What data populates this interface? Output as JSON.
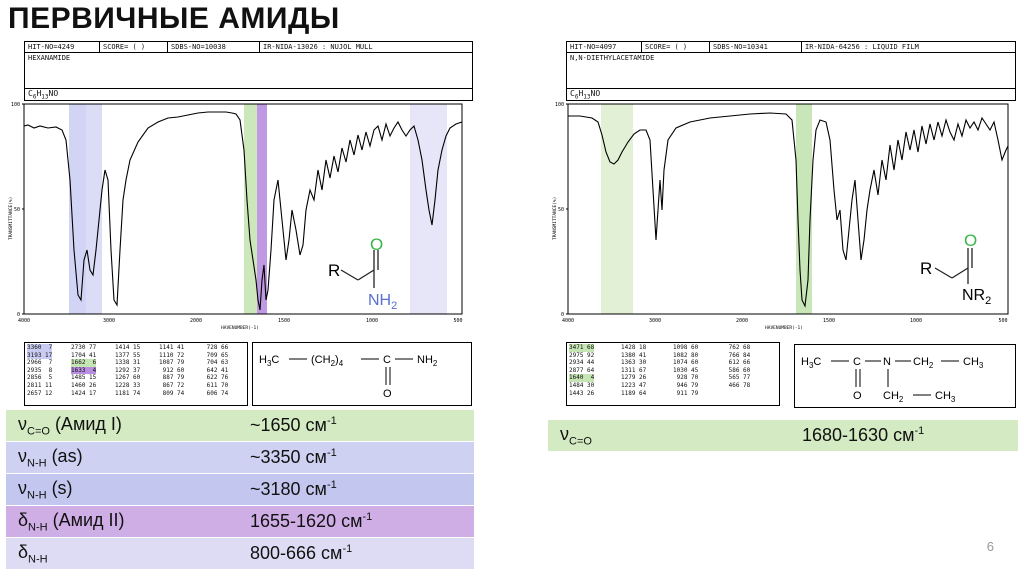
{
  "title": "ПЕРВИЧНЫЕ АМИДЫ",
  "page_number": "6",
  "left": {
    "header": {
      "hit": "HIT-NO=4249",
      "score": "SCORE=  (  )",
      "sdbs": "SDBS-NO=10038",
      "ir": "IR-NIDA-13026 : NUJOL MULL",
      "name": "HEXANAMIDE",
      "formula": "C6H13NO"
    },
    "axis": {
      "y_top": "100",
      "y_mid": "50",
      "y_bottom": "0",
      "y_label": "TRANSMITTANCE(%)",
      "x_ticks": [
        "4000",
        "3000",
        "2000",
        "1500",
        "1000",
        "500"
      ],
      "x_label": "HAVENUMBER(-1)"
    },
    "structure": {
      "r": "R",
      "o": "O",
      "n": "NH",
      "n_sub": "2"
    },
    "peaks": [
      [
        "3360  7",
        "3193 17",
        "2966  7",
        "2935  8",
        "2856  5",
        "2811 11",
        "2657 12"
      ],
      [
        "2730 77",
        "1704 41",
        "1662  6",
        "1633  4",
        "1485 15",
        "1460 26",
        "1424 17"
      ],
      [
        "1414 15",
        "1377 55",
        "1338 31",
        "1292 37",
        "1267 60",
        "1228 33",
        "1181 74"
      ],
      [
        "1141 41",
        "1110 72",
        "1087 79",
        " 912 60",
        " 887 79",
        " 867 72",
        " 809 74"
      ],
      [
        " 728 66",
        " 709 65",
        " 704 63",
        " 642 41",
        " 622 76",
        " 611 70",
        " 606 74"
      ]
    ],
    "formula": {
      "a": "H",
      "a_sub": "3",
      "b": "C",
      "c": "(CH",
      "c_sub": "2",
      "d": ")",
      "d_sub": "4",
      "e": "C",
      "f": "NH",
      "f_sub": "2",
      "o": "O"
    },
    "table": [
      {
        "nu": "ν",
        "sub": "C=O",
        "label": " (Амид I)",
        "value": "~1650 см",
        "sup": "-1"
      },
      {
        "nu": "ν",
        "sub": "N-H",
        "label": " (as)",
        "value": "~3350 см",
        "sup": "-1"
      },
      {
        "nu": "ν",
        "sub": "N-H",
        "label": " (s)",
        "value": "~3180 см",
        "sup": "-1"
      },
      {
        "nu": "δ",
        "sub": "N-H",
        "label": " (Амид II)",
        "value": "1655-1620 см",
        "sup": "-1"
      },
      {
        "nu": "δ",
        "sub": "N-H",
        "label": "",
        "value": "800-666 см",
        "sup": "-1"
      }
    ]
  },
  "right": {
    "header": {
      "hit": "HIT-NO=4097",
      "score": "SCORE=  (  )",
      "sdbs": "SDBS-NO=10341",
      "ir": "IR-NIDA-64256 : LIQUID FILM",
      "name": "N,N-DIETHYLACETAMIDE",
      "formula": "C6H13NO"
    },
    "axis": {
      "y_top": "100",
      "y_mid": "50",
      "y_bottom": "0",
      "y_label": "TRANSMITTANCE(%)",
      "x_ticks": [
        "4000",
        "3000",
        "2000",
        "1500",
        "1000",
        "500"
      ],
      "x_label": "HAVENUMBER(-1)"
    },
    "structure": {
      "r": "R",
      "o": "O",
      "n": "NR",
      "n_sub": "2"
    },
    "peaks": [
      [
        "3471 68",
        "2975 92",
        "2934 44",
        "2877 64",
        "1640  4",
        "1484 30",
        "1443 26"
      ],
      [
        "1428 18",
        "1380 41",
        "1363 30",
        "1311 67",
        "1279 26",
        "1223 47",
        "1189 64"
      ],
      [
        "1098 60",
        "1082 80",
        "1074 60",
        "1030 45",
        " 928 70",
        " 946 79",
        " 911 79"
      ],
      [
        " 762 68",
        " 766 84",
        " 612 66",
        " 586 60",
        " 565 77",
        " 466 78",
        ""
      ]
    ],
    "formula": {
      "a": "H",
      "a_sub": "3",
      "b": "C",
      "c": "N",
      "d": "CH",
      "d_sub": "2",
      "e": "CH",
      "e_sub": "3",
      "o": "O",
      "f": "CH",
      "f_sub": "2",
      "g": "CH",
      "g_sub": "3"
    },
    "table": [
      {
        "nu": "ν",
        "sub": "C=O",
        "label": "",
        "value": "1680-1630 см",
        "sup": "-1"
      }
    ]
  }
}
